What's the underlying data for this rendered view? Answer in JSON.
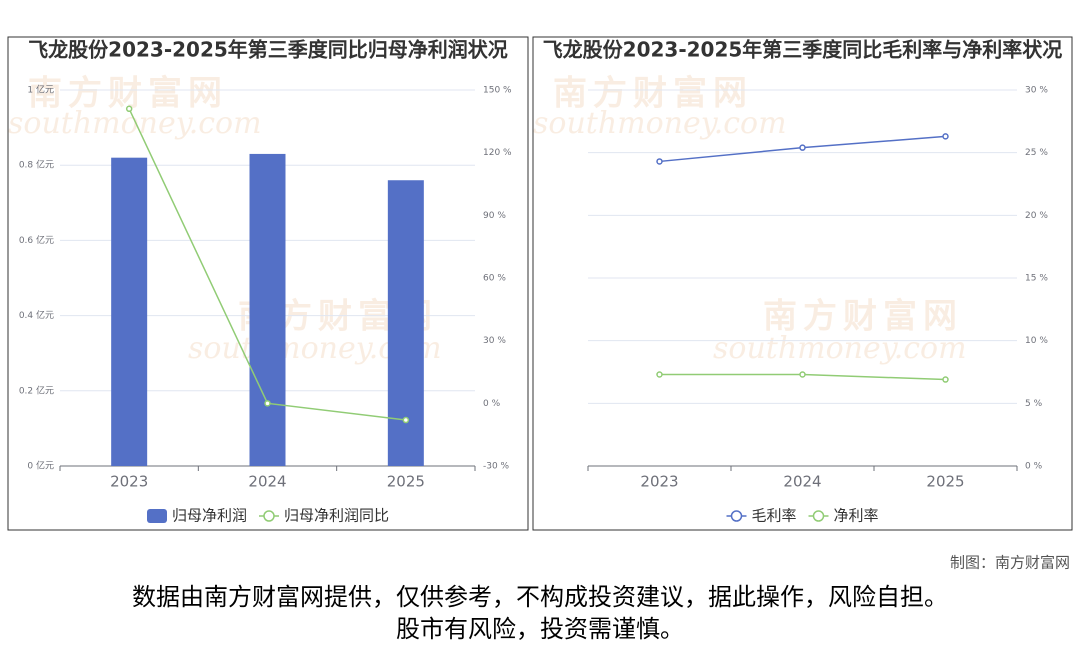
{
  "chart_data": [
    {
      "type": "bar",
      "title": "飞龙股份2023-2025年第三季度同比归母净利润状况",
      "categories": [
        "2023",
        "2024",
        "2025"
      ],
      "series": [
        {
          "name": "归母净利润",
          "type": "bar",
          "color": "#5470c6",
          "values": [
            0.82,
            0.83,
            0.76
          ]
        },
        {
          "name": "归母净利润同比",
          "type": "line",
          "axis": "y2",
          "color": "#91cc75",
          "values": [
            141,
            0,
            -8
          ]
        }
      ],
      "ylim": [
        0,
        1
      ],
      "yticks": [
        {
          "value": 0,
          "label": "0 亿元"
        },
        {
          "value": 0.2,
          "label": "0.2 亿元"
        },
        {
          "value": 0.4,
          "label": "0.4 亿元"
        },
        {
          "value": 0.6,
          "label": "0.6 亿元"
        },
        {
          "value": 0.8,
          "label": "0.8 亿元"
        },
        {
          "value": 1,
          "label": "1 亿元"
        }
      ],
      "y2lim": [
        -30,
        150
      ],
      "y2ticks": [
        {
          "value": -30,
          "label": "-30 %"
        },
        {
          "value": 0,
          "label": "0 %"
        },
        {
          "value": 30,
          "label": "30 %"
        },
        {
          "value": 60,
          "label": "60 %"
        },
        {
          "value": 90,
          "label": "90 %"
        },
        {
          "value": 120,
          "label": "120 %"
        },
        {
          "value": 150,
          "label": "150 %"
        }
      ],
      "grid": true
    },
    {
      "type": "line",
      "title": "飞龙股份2023-2025年第三季度同比毛利率与净利率状况",
      "categories": [
        "2023",
        "2024",
        "2025"
      ],
      "series": [
        {
          "name": "毛利率",
          "axis": "y2",
          "color": "#5470c6",
          "values": [
            24.3,
            25.4,
            26.3
          ]
        },
        {
          "name": "净利率",
          "axis": "y2",
          "color": "#91cc75",
          "values": [
            7.3,
            7.3,
            6.9
          ]
        }
      ],
      "y2lim": [
        0,
        30
      ],
      "y2ticks": [
        {
          "value": 0,
          "label": "0 %"
        },
        {
          "value": 5,
          "label": "5 %"
        },
        {
          "value": 10,
          "label": "10 %"
        },
        {
          "value": 15,
          "label": "15 %"
        },
        {
          "value": 20,
          "label": "20 %"
        },
        {
          "value": 25,
          "label": "25 %"
        },
        {
          "value": 30,
          "label": "30 %"
        }
      ],
      "grid": true
    }
  ],
  "watermark": {
    "cn": "南方财富网",
    "en": "southmoney.com"
  },
  "credit": "制图：南方财富网",
  "disclaimer": [
    "数据由南方财富网提供，仅供参考，不构成投资建议，据此操作，风险自担。",
    "股市有风险，投资需谨慎。"
  ]
}
